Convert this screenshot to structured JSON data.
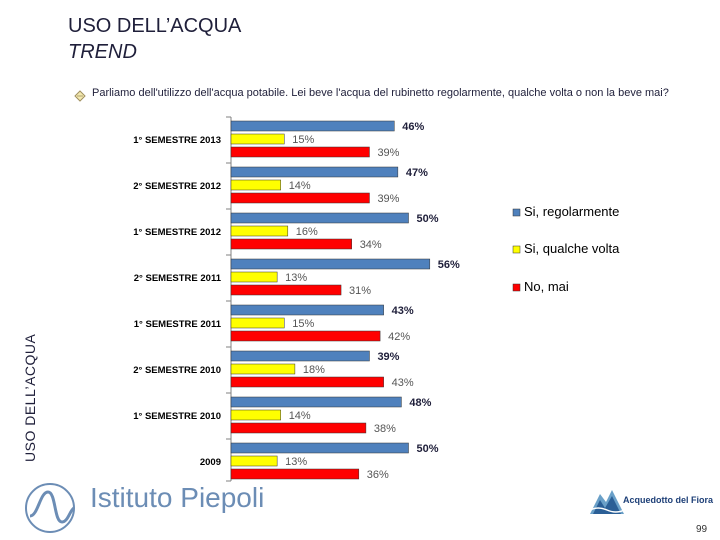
{
  "header": {
    "title": "USO DELL’ACQUA",
    "subtitle": "TREND",
    "side_label": "USO DELL’ACQUA"
  },
  "question": "Parliamo dell'utilizzo dell'acqua potabile. Lei beve l'acqua del rubinetto regolarmente, qualche volta o non la beve mai?",
  "footer": {
    "brand": "Istituto Piepoli",
    "partner": "Acquedotto del Fiora",
    "page_number": "99"
  },
  "colors": {
    "blue": "#4f81bd",
    "yellow": "#ffff00",
    "red": "#ff0000"
  },
  "chart_data": {
    "type": "bar",
    "orientation": "horizontal",
    "categories": [
      "1° SEMESTRE 2013",
      "2° SEMESTRE 2012",
      "1° SEMESTRE 2012",
      "2° SEMESTRE 2011",
      "1° SEMESTRE 2011",
      "2° SEMESTRE 2010",
      "1° SEMESTRE 2010",
      "2009"
    ],
    "series": [
      {
        "name": "Si, regolarmente",
        "color": "#4f81bd",
        "values": [
          46,
          47,
          50,
          56,
          43,
          39,
          48,
          50
        ]
      },
      {
        "name": "Si, qualche volta",
        "color": "#ffff00",
        "values": [
          15,
          14,
          16,
          13,
          15,
          18,
          14,
          13
        ]
      },
      {
        "name": "No, mai",
        "color": "#ff0000",
        "values": [
          39,
          39,
          34,
          31,
          42,
          43,
          38,
          36
        ]
      }
    ],
    "value_suffix": "%",
    "legend_position": "right"
  }
}
